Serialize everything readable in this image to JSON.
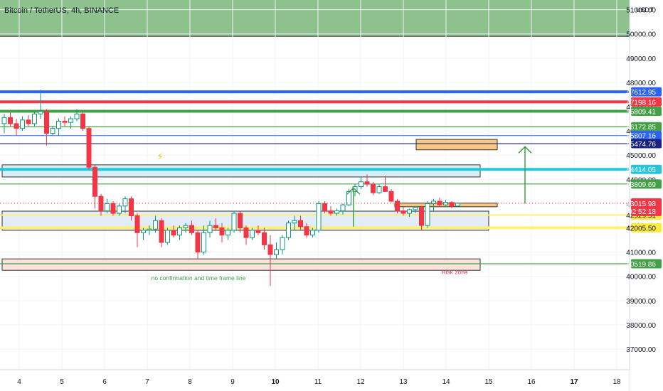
{
  "header": {
    "title": "Bitcoin / TetherUS, 4h, BINANCE",
    "currency": "USDT"
  },
  "chart_data": {
    "type": "candlestick",
    "ylim": [
      36150,
      51400
    ],
    "y_ticks": [
      "51000.00",
      "50000.00",
      "49000.00",
      "48000.00",
      "47000.00",
      "46000.00",
      "45000.00",
      "44000.00",
      "43000.00",
      "42000.00",
      "41000.00",
      "40000.00",
      "39000.00",
      "38000.00",
      "37000.00"
    ],
    "x_ticks": [
      "4",
      "5",
      "6",
      "7",
      "8",
      "9",
      "10",
      "11",
      "12",
      "13",
      "14",
      "15",
      "16",
      "17",
      "18"
    ],
    "bold_x_ticks": [
      "10",
      "17"
    ],
    "supply_zone": {
      "from": 49900,
      "to": 51400,
      "color": "#8fc18f"
    },
    "horizontal_lines": [
      {
        "price": 47612.95,
        "label": "47612.95",
        "color": "#2962ff",
        "width": 4
      },
      {
        "price": 47198.16,
        "label": "47198.16",
        "color": "#f23645",
        "width": 4
      },
      {
        "price": 46809.41,
        "label": "46809.41",
        "color": "#43a047",
        "width": 4
      },
      {
        "price": 46172.85,
        "label": "46172.85",
        "color": "#43a047",
        "width": 1.2
      },
      {
        "price": 45807.16,
        "label": "45807.16",
        "color": "#2962ff",
        "width": 1
      },
      {
        "price": 45474.76,
        "label": "45474.76",
        "color": "#1a237e",
        "width": 1.2
      },
      {
        "price": 44414.05,
        "label": "44414.05",
        "color": "#26c6da",
        "width": 4
      },
      {
        "price": 43809.69,
        "label": "43809.69",
        "color": "#43a047",
        "width": 1.2
      },
      {
        "price": 42529.51,
        "label": "42529.51",
        "color": "#fff176",
        "width": 2
      },
      {
        "price": 42005.5,
        "label": "42005.50",
        "color": "#fff176",
        "width": 4
      },
      {
        "price": 40519.86,
        "label": "40519.86",
        "color": "#43a047",
        "width": 1.2
      }
    ],
    "current_price": {
      "price": 43015.98,
      "label": "43015.98",
      "countdown": "02:52:18",
      "color": "#f23645"
    },
    "annotations": [
      {
        "text": "no confirmation and time frame line",
        "x_day": 8.2,
        "price": 39850,
        "color": "#43a047"
      },
      {
        "text": "Risk zone",
        "x_day": 14.2,
        "price": 40100,
        "color": "#f23645"
      }
    ],
    "zones": [
      {
        "x1": 3.6,
        "x2": 14.8,
        "top": 44600,
        "bottom": 44100,
        "fill": "#d6eef5",
        "stroke": "#333333"
      },
      {
        "x1": 3.6,
        "x2": 15.0,
        "top": 42690,
        "bottom": 41900,
        "fill": "#e3ecfa",
        "stroke": "#333333"
      },
      {
        "x1": 3.6,
        "x2": 14.8,
        "top": 40720,
        "bottom": 40250,
        "fill": "#fbe3dc",
        "stroke": "#333333"
      },
      {
        "x1": 13.3,
        "x2": 15.2,
        "top": 45650,
        "bottom": 45220,
        "fill": "#f9c77f",
        "stroke": "#333333"
      },
      {
        "x1": 12.8,
        "x2": 15.2,
        "top": 43020,
        "bottom": 42870,
        "fill": "#f9c77f",
        "stroke": "#333333"
      }
    ],
    "arrows": [
      {
        "x_day": 11.83,
        "from": 42050,
        "to": 43650,
        "color": "#43a047"
      },
      {
        "x_day": 15.85,
        "from": 43000,
        "to": 45350,
        "color": "#43a047"
      }
    ],
    "lightning": {
      "x_day": 7.3,
      "price": 44800,
      "symbol": "⚡"
    },
    "candles": [
      [
        46300,
        46700,
        45900,
        46550
      ],
      [
        46550,
        46750,
        46200,
        46300
      ],
      [
        46300,
        46500,
        45800,
        46100
      ],
      [
        46100,
        46600,
        46000,
        46450
      ],
      [
        46450,
        46650,
        46200,
        46300
      ],
      [
        46300,
        46800,
        46200,
        46700
      ],
      [
        46700,
        47700,
        46500,
        46800
      ],
      [
        46800,
        46900,
        45400,
        45900
      ],
      [
        45900,
        46200,
        45800,
        46100
      ],
      [
        46100,
        46500,
        45800,
        46400
      ],
      [
        46400,
        46600,
        46200,
        46350
      ],
      [
        46350,
        46600,
        46100,
        46500
      ],
      [
        46500,
        46900,
        46400,
        46700
      ],
      [
        46700,
        46750,
        46000,
        46100
      ],
      [
        46100,
        46200,
        44400,
        44500
      ],
      [
        44500,
        44600,
        42800,
        43300
      ],
      [
        43300,
        43400,
        42500,
        42700
      ],
      [
        42700,
        43200,
        42600,
        43000
      ],
      [
        43000,
        43100,
        42500,
        42600
      ],
      [
        42600,
        43000,
        42500,
        42900
      ],
      [
        42900,
        43300,
        42600,
        43200
      ],
      [
        43200,
        43300,
        42300,
        42500
      ],
      [
        42500,
        42600,
        41200,
        41800
      ],
      [
        41800,
        42000,
        41500,
        41900
      ],
      [
        41900,
        42100,
        41700,
        41950
      ],
      [
        41950,
        42500,
        41800,
        42300
      ],
      [
        42300,
        42400,
        41200,
        41400
      ],
      [
        41400,
        42000,
        41300,
        41900
      ],
      [
        41900,
        42100,
        41600,
        41700
      ],
      [
        41700,
        42100,
        41500,
        42000
      ],
      [
        42000,
        42200,
        41800,
        42100
      ],
      [
        42100,
        42300,
        41700,
        41800
      ],
      [
        41800,
        41900,
        40700,
        41000
      ],
      [
        41000,
        42100,
        40900,
        41800
      ],
      [
        41800,
        42300,
        41600,
        42100
      ],
      [
        42100,
        42400,
        41900,
        42000
      ],
      [
        42000,
        42200,
        41400,
        41700
      ],
      [
        41700,
        42000,
        41500,
        41900
      ],
      [
        41900,
        42700,
        41800,
        42600
      ],
      [
        42600,
        42700,
        41800,
        42000
      ],
      [
        42000,
        42100,
        41300,
        41600
      ],
      [
        41600,
        42000,
        41500,
        41900
      ],
      [
        41900,
        42100,
        41700,
        41800
      ],
      [
        41800,
        42000,
        41100,
        41300
      ],
      [
        41300,
        41700,
        39600,
        40900
      ],
      [
        40900,
        41400,
        40700,
        41100
      ],
      [
        41100,
        41700,
        40900,
        41600
      ],
      [
        41600,
        42300,
        41500,
        42200
      ],
      [
        42200,
        42500,
        41900,
        42300
      ],
      [
        42300,
        42500,
        41900,
        42050
      ],
      [
        42050,
        42200,
        41600,
        41700
      ],
      [
        41700,
        42000,
        41600,
        41900
      ],
      [
        41900,
        43100,
        41800,
        43000
      ],
      [
        43000,
        43100,
        42600,
        42700
      ],
      [
        42700,
        42900,
        42500,
        42600
      ],
      [
        42600,
        42800,
        42500,
        42700
      ],
      [
        42700,
        43000,
        42550,
        42950
      ],
      [
        42950,
        43600,
        42900,
        43500
      ],
      [
        43500,
        43800,
        43300,
        43700
      ],
      [
        43700,
        44100,
        43600,
        43900
      ],
      [
        43900,
        44200,
        43700,
        43800
      ],
      [
        43800,
        43900,
        43350,
        43450
      ],
      [
        43450,
        43800,
        43400,
        43700
      ],
      [
        43700,
        44150,
        43600,
        43500
      ],
      [
        43500,
        43600,
        43050,
        43100
      ],
      [
        43100,
        43200,
        42600,
        42700
      ],
      [
        42700,
        42850,
        42500,
        42600
      ],
      [
        42600,
        42800,
        42450,
        42750
      ],
      [
        42750,
        42900,
        42600,
        42850
      ],
      [
        42850,
        42900,
        41900,
        42100
      ],
      [
        42100,
        43100,
        42000,
        43000
      ],
      [
        43000,
        43200,
        42700,
        43100
      ],
      [
        43100,
        43250,
        42850,
        42950
      ],
      [
        42950,
        43150,
        42900,
        43050
      ],
      [
        43050,
        43100,
        42800,
        42900
      ],
      [
        42900,
        43050,
        42850,
        43016
      ]
    ]
  }
}
